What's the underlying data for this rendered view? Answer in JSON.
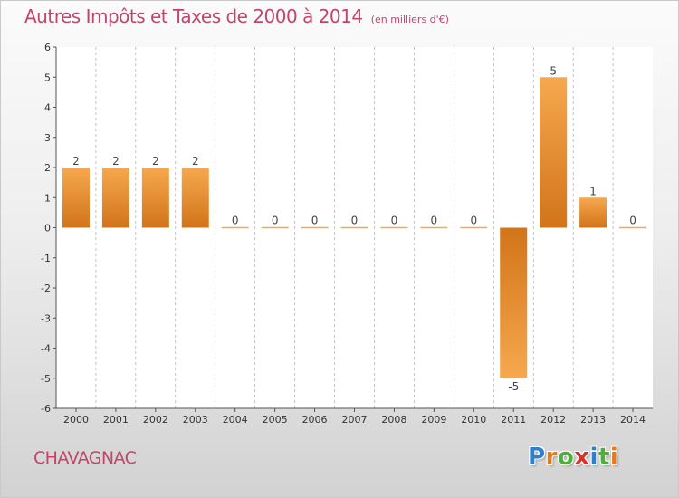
{
  "chart_data": {
    "type": "bar",
    "title": "Autres Impôts et Taxes de 2000 à 2014",
    "subtitle": "(en milliers d'€)",
    "categories": [
      "2000",
      "2001",
      "2002",
      "2003",
      "2004",
      "2005",
      "2006",
      "2007",
      "2008",
      "2009",
      "2010",
      "2011",
      "2012",
      "2013",
      "2014"
    ],
    "values": [
      2,
      2,
      2,
      2,
      0,
      0,
      0,
      0,
      0,
      0,
      0,
      -5,
      5,
      1,
      0
    ],
    "data_labels": [
      "2",
      "2",
      "2",
      "2",
      "0",
      "0",
      "0",
      "0",
      "0",
      "0",
      "0",
      "-5",
      "5",
      "1",
      "0"
    ],
    "ylim": [
      -6,
      6
    ],
    "yticks": [
      -6,
      -5,
      -4,
      -3,
      -2,
      -1,
      0,
      1,
      2,
      3,
      4,
      5,
      6
    ],
    "xlabel": "",
    "ylabel": "",
    "grid": "vertical dashed",
    "legend": "none",
    "bar_color_light": "#f6a84f",
    "bar_color_dark": "#d27419"
  },
  "commune": "CHAVAGNAC",
  "logo": {
    "letters": [
      {
        "char": "P",
        "color": "#2f7fd1"
      },
      {
        "char": "r",
        "color": "#e97a1c"
      },
      {
        "char": "o",
        "color": "#4fae3a"
      },
      {
        "char": "x",
        "color": "#d4342b"
      },
      {
        "char": "i",
        "color": "#2f7fd1"
      },
      {
        "char": "t",
        "color": "#4fae3a"
      },
      {
        "char": "i",
        "color": "#e97a1c"
      }
    ]
  },
  "colors": {
    "title": "#c0466b",
    "axis": "#555555",
    "grid": "#9a9a9a",
    "plot_bg": "#ffffff"
  }
}
